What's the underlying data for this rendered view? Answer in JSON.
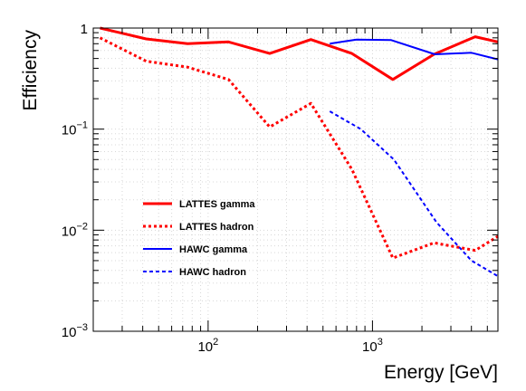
{
  "chart_data": {
    "type": "line",
    "title": "",
    "xlabel": "Energy [GeV]",
    "ylabel": "Efficiency",
    "x_scale": "log",
    "y_scale": "log",
    "xlim": [
      20,
      5800
    ],
    "ylim": [
      0.001,
      1
    ],
    "grid": true,
    "legend_position": "center-left",
    "x_tick_labels": [
      {
        "value": 100,
        "base": "10",
        "exp": "2"
      },
      {
        "value": 1000,
        "base": "10",
        "exp": "3"
      }
    ],
    "y_tick_labels": [
      {
        "value": 1,
        "base": "1",
        "exp": ""
      },
      {
        "value": 0.1,
        "base": "10",
        "exp": "−1"
      },
      {
        "value": 0.01,
        "base": "10",
        "exp": "−2"
      },
      {
        "value": 0.001,
        "base": "10",
        "exp": "−3"
      }
    ],
    "series": [
      {
        "name": "LATTES gamma",
        "color": "#ff0000",
        "style": "solid",
        "width": 3,
        "x": [
          22,
          42,
          75,
          133,
          237,
          422,
          750,
          1330,
          2370,
          4220,
          5800
        ],
        "y": [
          1.0,
          0.78,
          0.7,
          0.73,
          0.56,
          0.77,
          0.56,
          0.31,
          0.55,
          0.82,
          0.73
        ]
      },
      {
        "name": "LATTES hadron",
        "color": "#ff0000",
        "style": "dotted",
        "width": 3,
        "x": [
          22,
          42,
          75,
          133,
          237,
          422,
          750,
          1330,
          2370,
          4220,
          5800
        ],
        "y": [
          0.8,
          0.47,
          0.41,
          0.31,
          0.105,
          0.18,
          0.04,
          0.0053,
          0.0075,
          0.0063,
          0.0087
        ]
      },
      {
        "name": "HAWC gamma",
        "color": "#0000ff",
        "style": "solid",
        "width": 2,
        "x": [
          550,
          800,
          1300,
          2400,
          4000,
          5800
        ],
        "y": [
          0.7,
          0.77,
          0.76,
          0.55,
          0.57,
          0.49
        ]
      },
      {
        "name": "HAWC hadron",
        "color": "#0000ff",
        "style": "dashed",
        "width": 2,
        "x": [
          550,
          850,
          1350,
          2450,
          4000,
          5800
        ],
        "y": [
          0.15,
          0.1,
          0.05,
          0.012,
          0.005,
          0.0035
        ]
      }
    ]
  }
}
